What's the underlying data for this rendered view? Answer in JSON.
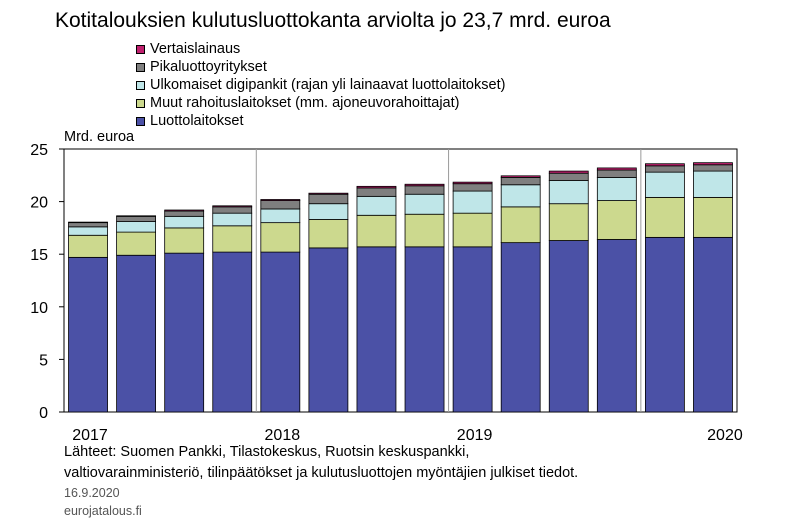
{
  "title": "Kotitalouksien kulutusluottokanta arviolta jo 23,7 mrd. euroa",
  "unit_label": "Mrd. euroa",
  "source_line1": "Lähteet: Suomen Pankki, Tilastokeskus, Ruotsin keskuspankki,",
  "source_line2": "valtiovarainministeriö, tilinpäätökset ja kulutusluottojen  myöntäjien julkiset tiedot.",
  "date": "16.9.2020",
  "site": "eurojatalous.fi",
  "chart_data": {
    "type": "bar",
    "stacked": true,
    "x_tick_labels": [
      "2017",
      "2018",
      "2019",
      "2020"
    ],
    "categories": [
      "2017 Q1",
      "2017 Q2",
      "2017 Q3",
      "2017 Q4",
      "2018 Q1",
      "2018 Q2",
      "2018 Q3",
      "2018 Q4",
      "2019 Q1",
      "2019 Q2",
      "2019 Q3",
      "2019 Q4",
      "2020 Q1",
      "2020 Q2"
    ],
    "ylim": [
      0,
      25
    ],
    "yticks": [
      0,
      5,
      10,
      15,
      20,
      25
    ],
    "grid": "vertical year separators",
    "legend_order": [
      4,
      3,
      2,
      1,
      0
    ],
    "series": [
      {
        "name": "Luottolaitokset",
        "color": "#4b51a6",
        "values": [
          14.7,
          14.9,
          15.1,
          15.2,
          15.2,
          15.6,
          15.7,
          15.7,
          15.7,
          16.1,
          16.3,
          16.4,
          16.6,
          16.6
        ]
      },
      {
        "name": "Muut rahoituslaitokset (mm. ajoneuvorahoittajat)",
        "color": "#ccd98e",
        "values": [
          2.1,
          2.2,
          2.4,
          2.5,
          2.8,
          2.7,
          3.0,
          3.1,
          3.2,
          3.4,
          3.5,
          3.7,
          3.8,
          3.8
        ]
      },
      {
        "name": "Ulkomaiset digipankit (rajan yli lainaavat luottolaitokset)",
        "color": "#bfe6e8",
        "values": [
          0.8,
          1.0,
          1.1,
          1.2,
          1.3,
          1.5,
          1.8,
          1.9,
          2.1,
          2.1,
          2.2,
          2.2,
          2.4,
          2.5
        ]
      },
      {
        "name": "Pikaluottoyritykset",
        "color": "#7f7f7f",
        "values": [
          0.4,
          0.5,
          0.5,
          0.6,
          0.8,
          0.9,
          0.8,
          0.8,
          0.7,
          0.7,
          0.7,
          0.7,
          0.6,
          0.6
        ]
      },
      {
        "name": "Vertaislainaus",
        "color": "#c0206e",
        "values": [
          0.05,
          0.05,
          0.1,
          0.1,
          0.1,
          0.1,
          0.15,
          0.15,
          0.15,
          0.15,
          0.2,
          0.2,
          0.2,
          0.2
        ]
      }
    ]
  }
}
